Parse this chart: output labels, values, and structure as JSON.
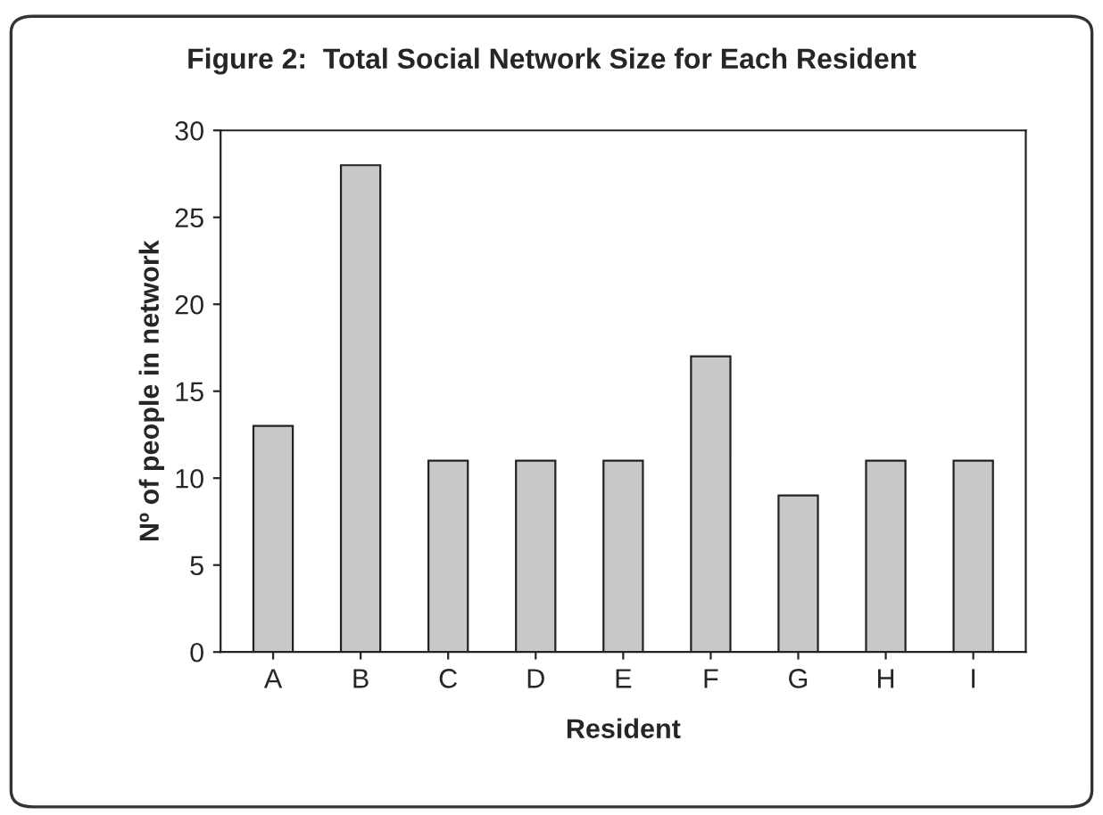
{
  "chart_data": {
    "type": "bar",
    "title": "Figure 2:  Total Social Network Size for Each Resident",
    "xlabel": "Resident",
    "ylabel": "Nº of people in network",
    "categories": [
      "A",
      "B",
      "C",
      "D",
      "E",
      "F",
      "G",
      "H",
      "I"
    ],
    "values": [
      13,
      28,
      11,
      11,
      11,
      17,
      9,
      11,
      11
    ],
    "color": "#c8c8c8",
    "ylim": [
      0,
      30
    ],
    "yticks": [
      0,
      5,
      10,
      15,
      20,
      25,
      30
    ],
    "grid": false
  }
}
